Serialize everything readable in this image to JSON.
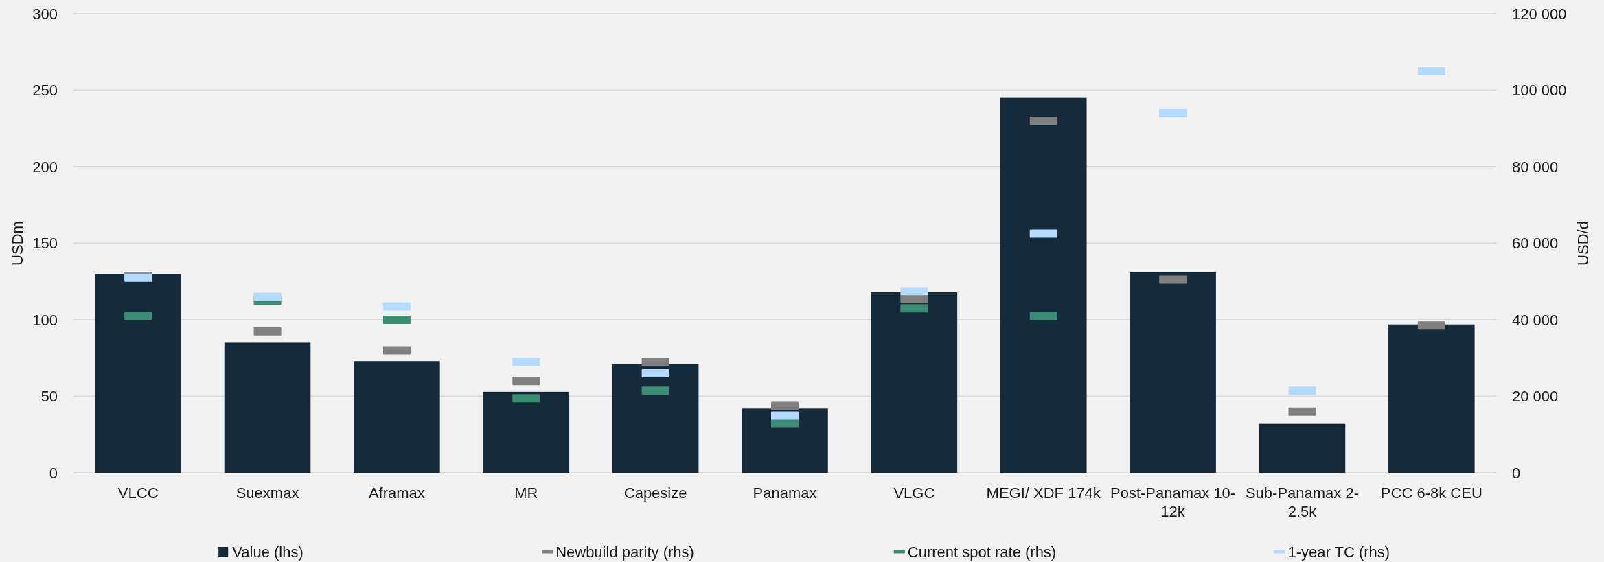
{
  "chart_data": {
    "type": "bar",
    "categories": [
      "VLCC",
      "Suexmax",
      "Aframax",
      "MR",
      "Capesize",
      "Panamax",
      "VLGC",
      "MEGI/ XDF 174k",
      "Post-Panamax 10-12k",
      "Sub-Panamax 2-2.5k",
      "PCC 6-8k CEU"
    ],
    "ylabel": "USDm",
    "y2label": "USD/d",
    "ylim": [
      0,
      300
    ],
    "yticks": [
      0,
      50,
      100,
      150,
      200,
      250,
      300
    ],
    "y2lim": [
      0,
      120000
    ],
    "y2ticks": [
      0,
      {
        "value": 20000,
        "label": "20 000"
      },
      {
        "value": 40000,
        "label": "40 000"
      },
      {
        "value": 60000,
        "label": "60 000"
      },
      {
        "value": 80000,
        "label": "80 000"
      },
      {
        "value": 100000,
        "label": "100 000"
      },
      {
        "value": 120000,
        "label": "120 000"
      }
    ],
    "grid": "y",
    "legend": "bottom",
    "series": [
      {
        "name": "Value (lhs)",
        "color": "#152b3c",
        "values": [
          130,
          85,
          73,
          53,
          71,
          42,
          118,
          245,
          131,
          32,
          97
        ]
      },
      {
        "name": "Newbuild parity (rhs)",
        "type": "scatter",
        "axis": "y2",
        "color": "#808080",
        "values": [
          51500,
          37000,
          32000,
          24000,
          29000,
          17500,
          45500,
          92000,
          50500,
          16000,
          38500
        ]
      },
      {
        "name": "Current spot rate (rhs)",
        "type": "scatter",
        "axis": "y2",
        "color": "#3a8c72",
        "values": [
          41000,
          45000,
          40000,
          19500,
          21500,
          13000,
          43000,
          41000,
          null,
          null,
          null
        ]
      },
      {
        "name": "1-year TC (rhs)",
        "type": "scatter",
        "axis": "y2",
        "color": "#b4daff",
        "values": [
          51000,
          46000,
          43500,
          29000,
          26000,
          15000,
          47500,
          62500,
          94000,
          21500,
          105000
        ]
      }
    ]
  }
}
